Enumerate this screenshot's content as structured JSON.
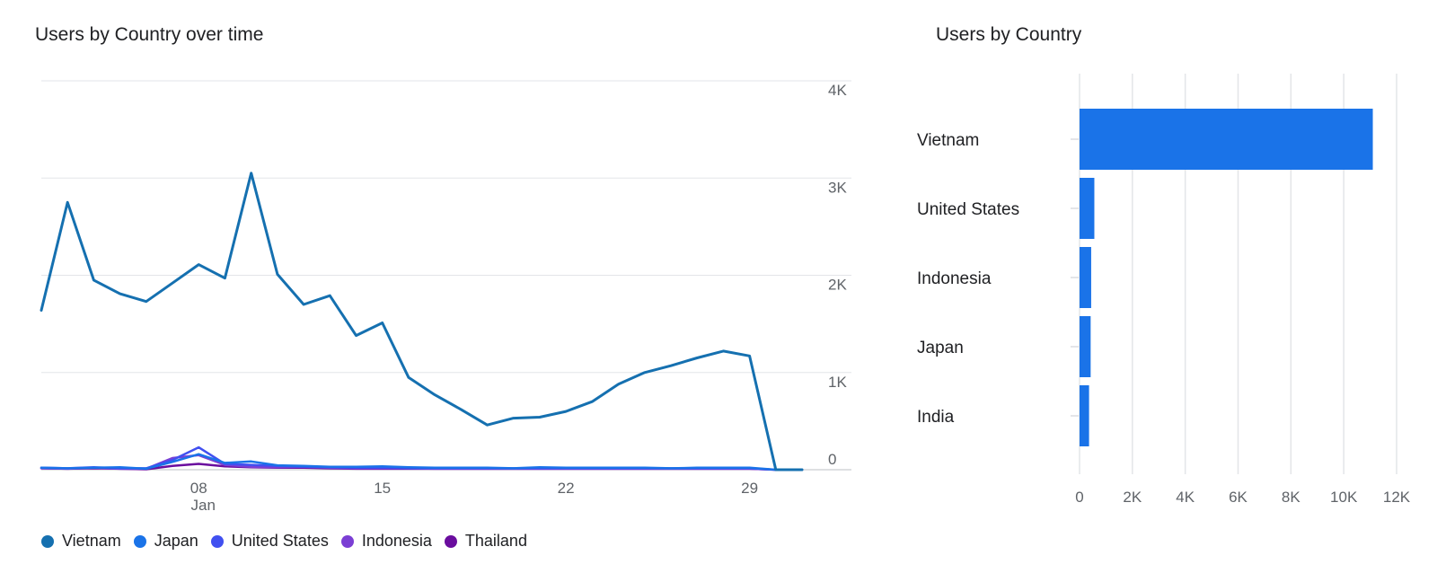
{
  "chart_data": [
    {
      "type": "line",
      "title": "Users by Country over time",
      "xlabel": "",
      "ylabel": "",
      "ylim": [
        0,
        4000
      ],
      "y_ticks": [
        {
          "value": 0,
          "label": "0"
        },
        {
          "value": 1000,
          "label": "1K"
        },
        {
          "value": 2000,
          "label": "2K"
        },
        {
          "value": 3000,
          "label": "3K"
        },
        {
          "value": 4000,
          "label": "4K"
        }
      ],
      "x_range": [
        2,
        31
      ],
      "x_ticks": [
        {
          "day": 8,
          "label": "08",
          "sublabel": "Jan"
        },
        {
          "day": 15,
          "label": "15",
          "sublabel": ""
        },
        {
          "day": 22,
          "label": "22",
          "sublabel": ""
        },
        {
          "day": 29,
          "label": "29",
          "sublabel": ""
        }
      ],
      "x": [
        2,
        3,
        4,
        5,
        6,
        7,
        8,
        9,
        10,
        11,
        12,
        13,
        14,
        15,
        16,
        17,
        18,
        19,
        20,
        21,
        22,
        23,
        24,
        25,
        26,
        27,
        28,
        29,
        30,
        31
      ],
      "series": [
        {
          "name": "Vietnam",
          "color": "#1570b0",
          "values": [
            1640,
            2750,
            1950,
            1810,
            1730,
            1920,
            2110,
            1970,
            3050,
            2010,
            1700,
            1790,
            1380,
            1510,
            950,
            770,
            620,
            460,
            530,
            540,
            600,
            700,
            880,
            1000,
            1070,
            1150,
            1220,
            1170,
            0,
            0
          ]
        },
        {
          "name": "Japan",
          "color": "#1a73e8",
          "values": [
            20,
            15,
            20,
            25,
            10,
            80,
            160,
            70,
            85,
            45,
            40,
            30,
            30,
            35,
            25,
            20,
            20,
            20,
            15,
            25,
            20,
            20,
            20,
            20,
            15,
            20,
            20,
            20,
            0,
            0
          ]
        },
        {
          "name": "United States",
          "color": "#4150f0",
          "values": [
            20,
            15,
            25,
            15,
            15,
            100,
            230,
            60,
            50,
            40,
            30,
            25,
            20,
            20,
            15,
            15,
            15,
            15,
            15,
            15,
            15,
            15,
            15,
            15,
            15,
            15,
            15,
            15,
            0,
            0
          ]
        },
        {
          "name": "Indonesia",
          "color": "#7b3fd4",
          "values": [
            15,
            10,
            20,
            10,
            10,
            120,
            150,
            50,
            30,
            25,
            30,
            20,
            15,
            15,
            15,
            10,
            10,
            10,
            10,
            10,
            10,
            10,
            10,
            10,
            10,
            10,
            10,
            10,
            0,
            0
          ]
        },
        {
          "name": "Thailand",
          "color": "#6a0d9e",
          "values": [
            15,
            10,
            15,
            10,
            5,
            40,
            60,
            35,
            25,
            20,
            20,
            15,
            10,
            10,
            10,
            10,
            10,
            10,
            10,
            10,
            10,
            10,
            10,
            10,
            10,
            10,
            10,
            10,
            0,
            0
          ]
        }
      ]
    },
    {
      "type": "bar",
      "orientation": "horizontal",
      "title": "Users by Country",
      "categories": [
        "Vietnam",
        "United States",
        "Indonesia",
        "Japan",
        "India"
      ],
      "values": [
        11100,
        560,
        440,
        420,
        360
      ],
      "color": "#1a73e8",
      "xlim": [
        0,
        12000
      ],
      "x_ticks": [
        {
          "value": 0,
          "label": "0"
        },
        {
          "value": 2000,
          "label": "2K"
        },
        {
          "value": 4000,
          "label": "4K"
        },
        {
          "value": 6000,
          "label": "6K"
        },
        {
          "value": 8000,
          "label": "8K"
        },
        {
          "value": 10000,
          "label": "10K"
        },
        {
          "value": 12000,
          "label": "12K"
        }
      ]
    }
  ]
}
